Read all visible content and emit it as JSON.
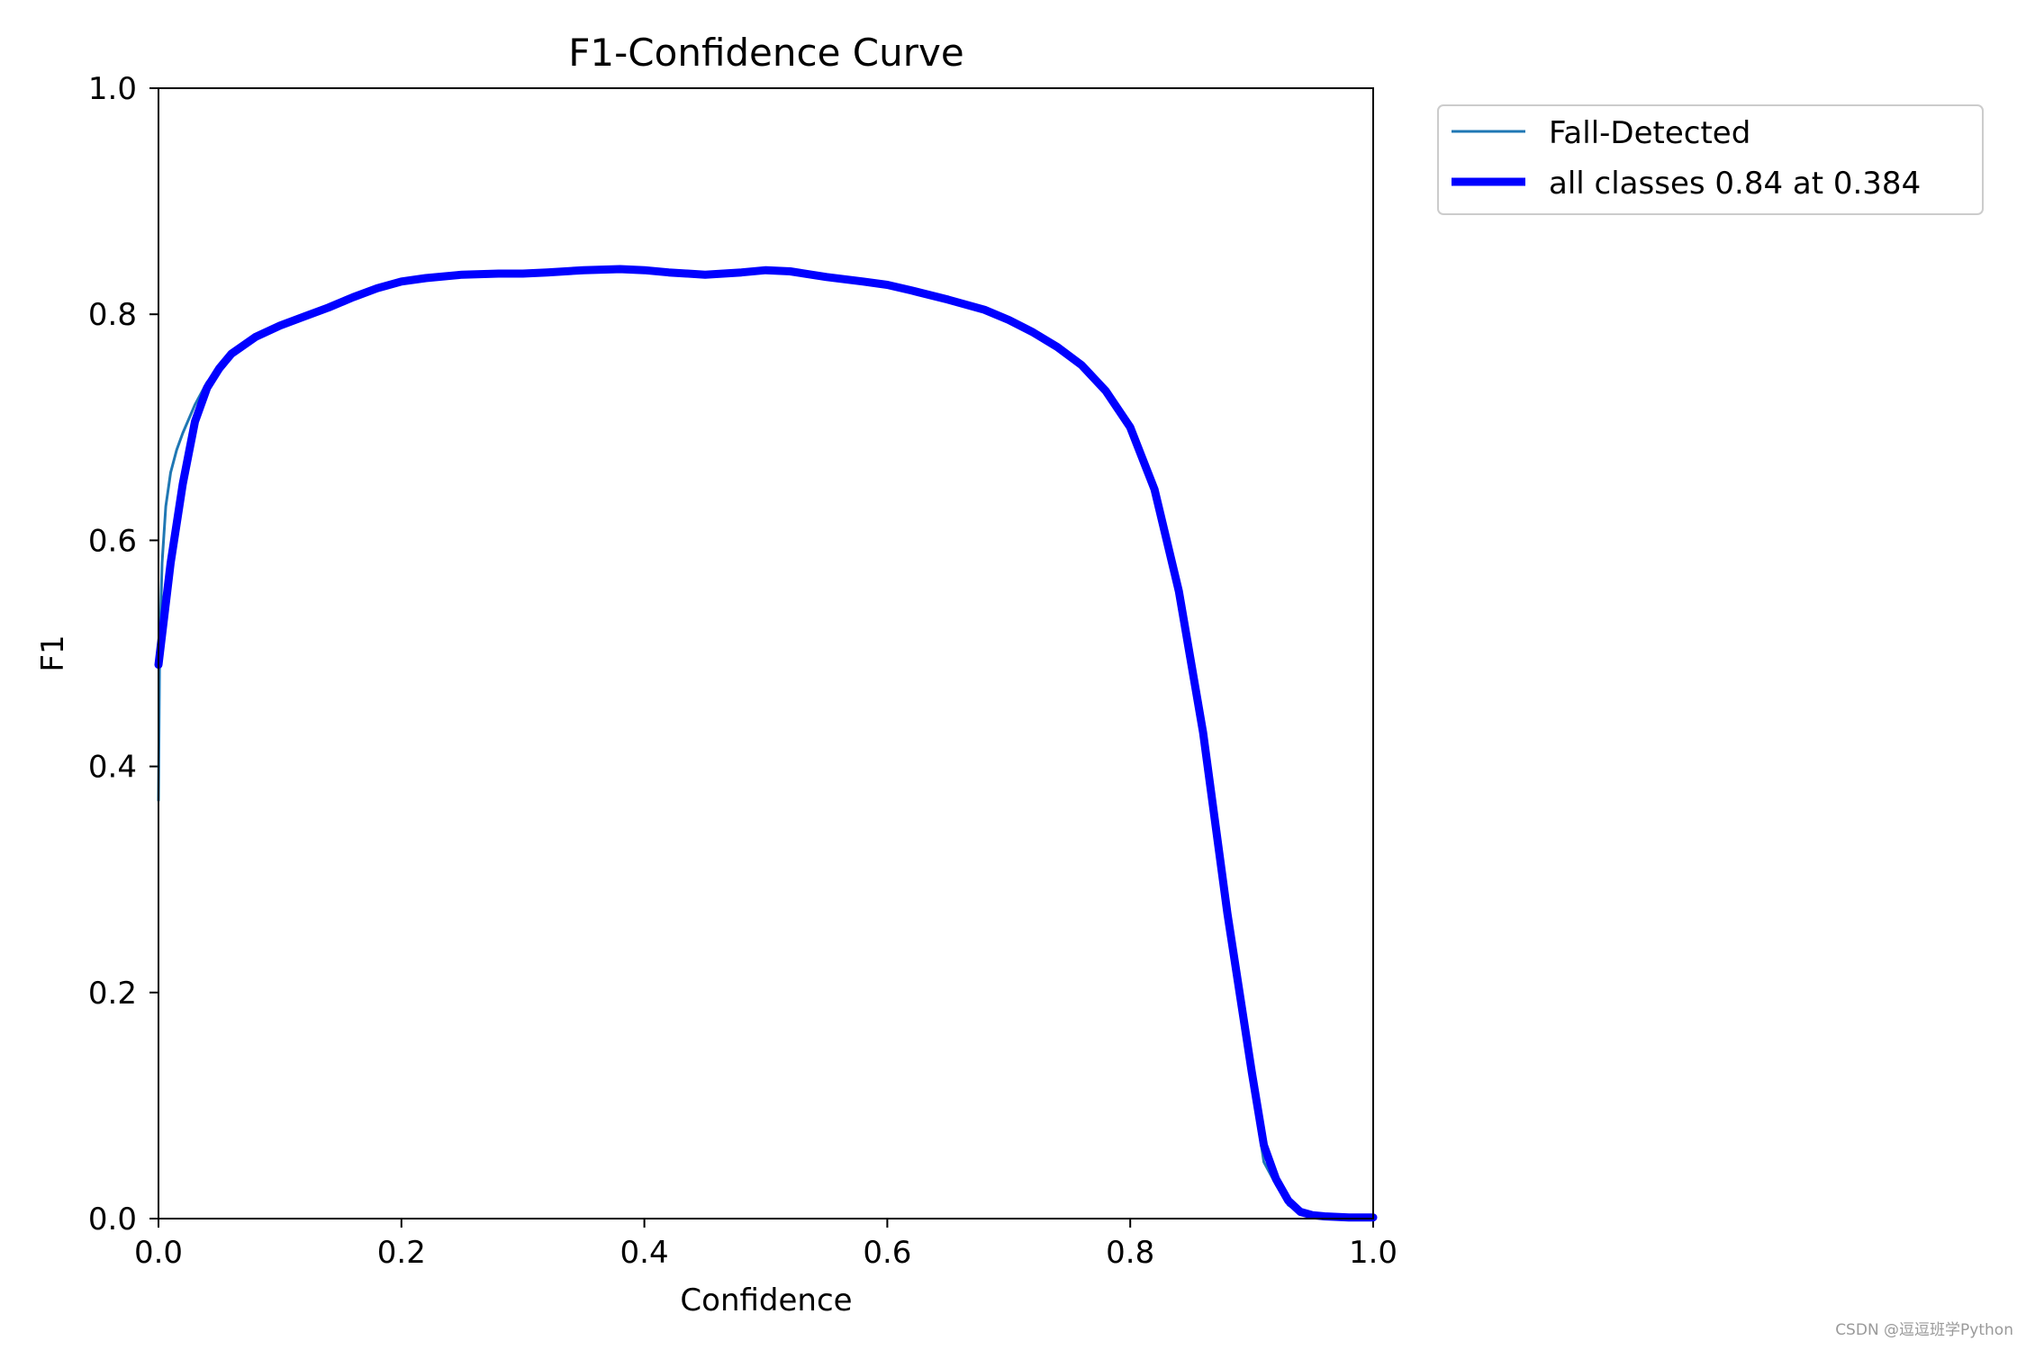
{
  "chart_data": {
    "type": "line",
    "title": "F1-Confidence Curve",
    "xlabel": "Confidence",
    "ylabel": "F1",
    "xlim": [
      0.0,
      1.0
    ],
    "ylim": [
      0.0,
      1.0
    ],
    "xticks": [
      "0.0",
      "0.2",
      "0.4",
      "0.6",
      "0.8",
      "1.0"
    ],
    "yticks": [
      "0.0",
      "0.2",
      "0.4",
      "0.6",
      "0.8",
      "1.0"
    ],
    "grid": false,
    "legend_position": "outside-top-right",
    "series": [
      {
        "name": "Fall-Detected",
        "color": "#1f77b4",
        "x": [
          0.0,
          0.001,
          0.003,
          0.006,
          0.01,
          0.015,
          0.02,
          0.03,
          0.04,
          0.05,
          0.06,
          0.08,
          0.1,
          0.12,
          0.14,
          0.16,
          0.18,
          0.2,
          0.22,
          0.25,
          0.28,
          0.3,
          0.32,
          0.35,
          0.38,
          0.4,
          0.42,
          0.45,
          0.48,
          0.5,
          0.52,
          0.55,
          0.58,
          0.6,
          0.62,
          0.65,
          0.68,
          0.7,
          0.72,
          0.74,
          0.76,
          0.78,
          0.8,
          0.82,
          0.84,
          0.86,
          0.88,
          0.9,
          0.91,
          0.92,
          0.93,
          0.94,
          0.95,
          0.96,
          0.98,
          1.0
        ],
        "y": [
          0.37,
          0.5,
          0.58,
          0.63,
          0.66,
          0.68,
          0.695,
          0.72,
          0.74,
          0.752,
          0.765,
          0.78,
          0.79,
          0.798,
          0.806,
          0.815,
          0.823,
          0.829,
          0.832,
          0.835,
          0.836,
          0.836,
          0.837,
          0.839,
          0.84,
          0.839,
          0.837,
          0.835,
          0.837,
          0.839,
          0.838,
          0.833,
          0.829,
          0.826,
          0.821,
          0.813,
          0.804,
          0.795,
          0.784,
          0.771,
          0.755,
          0.732,
          0.7,
          0.645,
          0.555,
          0.43,
          0.27,
          0.12,
          0.05,
          0.03,
          0.012,
          0.005,
          0.002,
          0.001,
          0.001,
          0.001
        ]
      },
      {
        "name": "all classes 0.84 at 0.384",
        "color": "#0000ff",
        "x": [
          0.0,
          0.01,
          0.02,
          0.03,
          0.04,
          0.05,
          0.06,
          0.08,
          0.1,
          0.12,
          0.14,
          0.16,
          0.18,
          0.2,
          0.22,
          0.25,
          0.28,
          0.3,
          0.32,
          0.35,
          0.38,
          0.4,
          0.42,
          0.45,
          0.48,
          0.5,
          0.52,
          0.55,
          0.58,
          0.6,
          0.62,
          0.65,
          0.68,
          0.7,
          0.72,
          0.74,
          0.76,
          0.78,
          0.8,
          0.82,
          0.84,
          0.86,
          0.88,
          0.9,
          0.91,
          0.92,
          0.93,
          0.94,
          0.95,
          0.96,
          0.98,
          1.0
        ],
        "y": [
          0.49,
          0.58,
          0.65,
          0.705,
          0.735,
          0.752,
          0.765,
          0.78,
          0.79,
          0.798,
          0.806,
          0.815,
          0.823,
          0.829,
          0.832,
          0.835,
          0.836,
          0.836,
          0.837,
          0.839,
          0.84,
          0.839,
          0.837,
          0.835,
          0.837,
          0.839,
          0.838,
          0.833,
          0.829,
          0.826,
          0.821,
          0.813,
          0.804,
          0.795,
          0.784,
          0.771,
          0.755,
          0.732,
          0.7,
          0.645,
          0.555,
          0.43,
          0.27,
          0.13,
          0.065,
          0.035,
          0.016,
          0.006,
          0.003,
          0.002,
          0.001,
          0.001
        ]
      }
    ]
  },
  "watermark": "CSDN @逗逗班学Python"
}
